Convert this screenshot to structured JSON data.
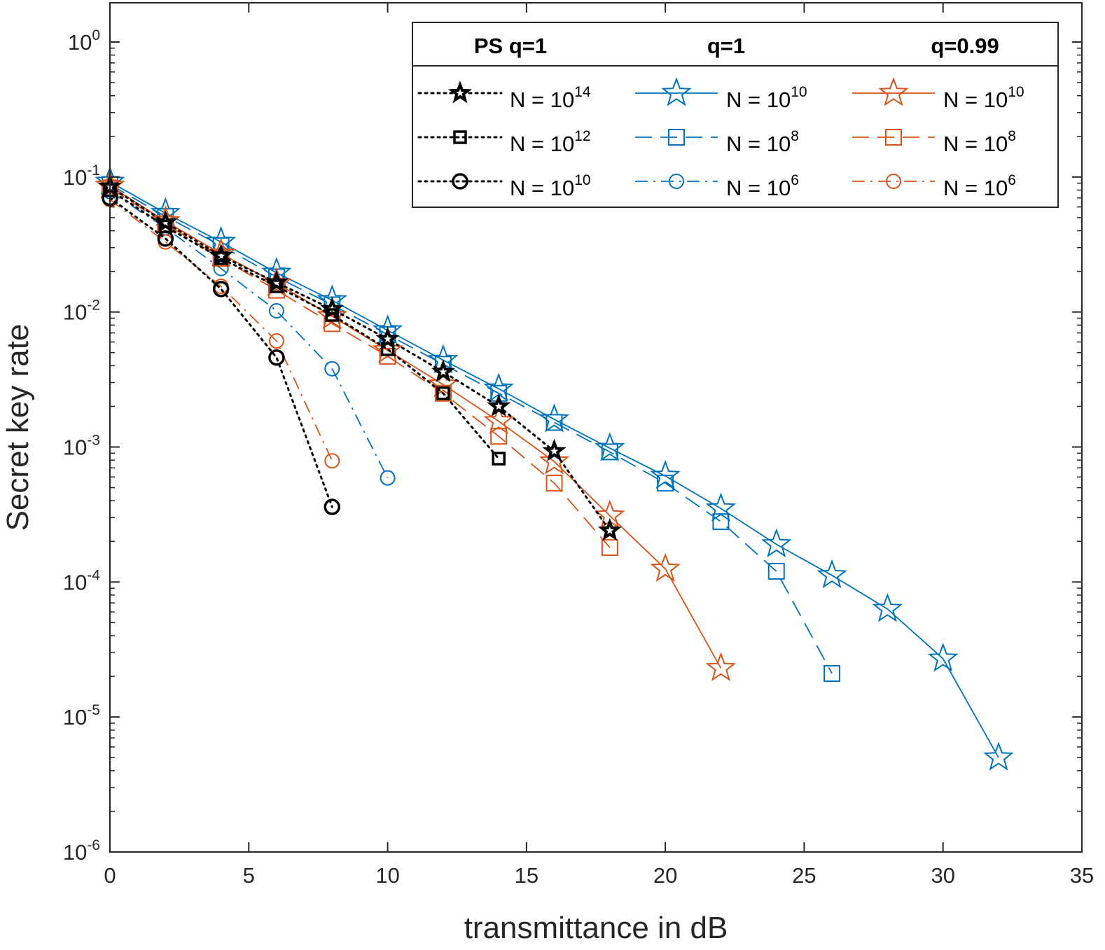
{
  "chart_data": {
    "type": "line",
    "title": "",
    "xlabel": "transmittance in dB",
    "ylabel": "Secret key rate",
    "xlim": [
      0,
      35
    ],
    "ylim": [
      1e-06,
      2
    ],
    "yscale": "log",
    "grid": false,
    "legend_position": "top-right",
    "x_ticks": [
      0,
      5,
      10,
      15,
      20,
      25,
      30,
      35
    ],
    "x_tick_labels": [
      "0",
      "5",
      "10",
      "15",
      "20",
      "25",
      "30",
      "35"
    ],
    "y_ticks": [
      1e-06,
      1e-05,
      0.0001,
      0.001,
      0.01,
      0.1,
      1
    ],
    "y_tick_labels": [
      {
        "base": "10",
        "exp": "-6"
      },
      {
        "base": "10",
        "exp": "-5"
      },
      {
        "base": "10",
        "exp": "-4"
      },
      {
        "base": "10",
        "exp": "-3"
      },
      {
        "base": "10",
        "exp": "-2"
      },
      {
        "base": "10",
        "exp": "-1"
      },
      {
        "base": "10",
        "exp": "0"
      }
    ],
    "legend_groups": [
      "PS q=1",
      "q=1",
      "q=0.99"
    ],
    "colors": {
      "ps": "#000000",
      "q1": "#0072BD",
      "q099": "#D95319"
    },
    "series": [
      {
        "name": "PS q=1, N = 10^14",
        "group": "PS q=1",
        "N_base": "N = 10",
        "N_exp": "14",
        "marker": "filled-star",
        "line": "dotted",
        "color": "#000000",
        "x": [
          0,
          2,
          4,
          6,
          8,
          10,
          12,
          14,
          16,
          18
        ],
        "y": [
          0.085,
          0.046,
          0.026,
          0.0165,
          0.0105,
          0.0063,
          0.0036,
          0.002,
          0.00093,
          0.00024
        ]
      },
      {
        "name": "PS q=1, N = 10^12",
        "group": "PS q=1",
        "N_base": "N = 10",
        "N_exp": "12",
        "marker": "bold-square",
        "line": "dotted",
        "color": "#000000",
        "x": [
          0,
          2,
          4,
          6,
          8,
          10,
          12,
          14
        ],
        "y": [
          0.08,
          0.043,
          0.025,
          0.0155,
          0.0095,
          0.0053,
          0.0025,
          0.00082
        ]
      },
      {
        "name": "PS q=1, N = 10^10",
        "group": "PS q=1",
        "N_base": "N = 10",
        "N_exp": "10",
        "marker": "bold-circle",
        "line": "dotted",
        "color": "#000000",
        "x": [
          0,
          2,
          4,
          6,
          8
        ],
        "y": [
          0.07,
          0.035,
          0.0148,
          0.0046,
          0.00036
        ]
      },
      {
        "name": "q=1, N = 10^10",
        "group": "q=1",
        "N_base": "N = 10",
        "N_exp": "10",
        "marker": "star",
        "line": "solid",
        "color": "#0072BD",
        "x": [
          0,
          2,
          4,
          6,
          8,
          10,
          12,
          14,
          16,
          18,
          20,
          22,
          24,
          26,
          28,
          30,
          32
        ],
        "y": [
          0.092,
          0.054,
          0.033,
          0.0195,
          0.0122,
          0.0073,
          0.0044,
          0.0027,
          0.0016,
          0.00098,
          0.00061,
          0.00035,
          0.00019,
          0.000112,
          6.3e-05,
          2.7e-05,
          5e-06
        ]
      },
      {
        "name": "q=1, N = 10^8",
        "group": "q=1",
        "N_base": "N = 10",
        "N_exp": "8",
        "marker": "square",
        "line": "dashed",
        "color": "#0072BD",
        "x": [
          0,
          2,
          4,
          6,
          8,
          10,
          12,
          14,
          16,
          18,
          20,
          22,
          24,
          26
        ],
        "y": [
          0.088,
          0.051,
          0.031,
          0.0182,
          0.0113,
          0.0068,
          0.0041,
          0.0025,
          0.00152,
          0.00092,
          0.00054,
          0.00028,
          0.00012,
          2.1e-05
        ]
      },
      {
        "name": "q=1, N = 10^6",
        "group": "q=1",
        "N_base": "N = 10",
        "N_exp": "6",
        "marker": "circle",
        "line": "dashdot",
        "color": "#0072BD",
        "x": [
          0,
          2,
          4,
          6,
          8,
          10
        ],
        "y": [
          0.078,
          0.042,
          0.021,
          0.0102,
          0.0038,
          0.00059
        ]
      },
      {
        "name": "q=0.99, N = 10^10",
        "group": "q=0.99",
        "N_base": "N = 10",
        "N_exp": "10",
        "marker": "star",
        "line": "solid",
        "color": "#D95319",
        "x": [
          0,
          2,
          4,
          6,
          8,
          10,
          12,
          14,
          16,
          18,
          20,
          22
        ],
        "y": [
          0.086,
          0.047,
          0.027,
          0.0163,
          0.0093,
          0.0052,
          0.0029,
          0.00155,
          0.00078,
          0.00031,
          0.000125,
          2.3e-05
        ]
      },
      {
        "name": "q=0.99, N = 10^8",
        "group": "q=0.99",
        "N_base": "N = 10",
        "N_exp": "8",
        "marker": "square",
        "line": "dashed",
        "color": "#D95319",
        "x": [
          0,
          2,
          4,
          6,
          8,
          10,
          12,
          14,
          16,
          18
        ],
        "y": [
          0.083,
          0.045,
          0.025,
          0.0145,
          0.0082,
          0.0047,
          0.0025,
          0.0012,
          0.00054,
          0.00018
        ]
      },
      {
        "name": "q=0.99, N = 10^6",
        "group": "q=0.99",
        "N_base": "N = 10",
        "N_exp": "6",
        "marker": "circle",
        "line": "dashdot",
        "color": "#D95319",
        "x": [
          0,
          2,
          4,
          6,
          8
        ],
        "y": [
          0.068,
          0.033,
          0.0155,
          0.0061,
          0.00079
        ]
      }
    ]
  }
}
